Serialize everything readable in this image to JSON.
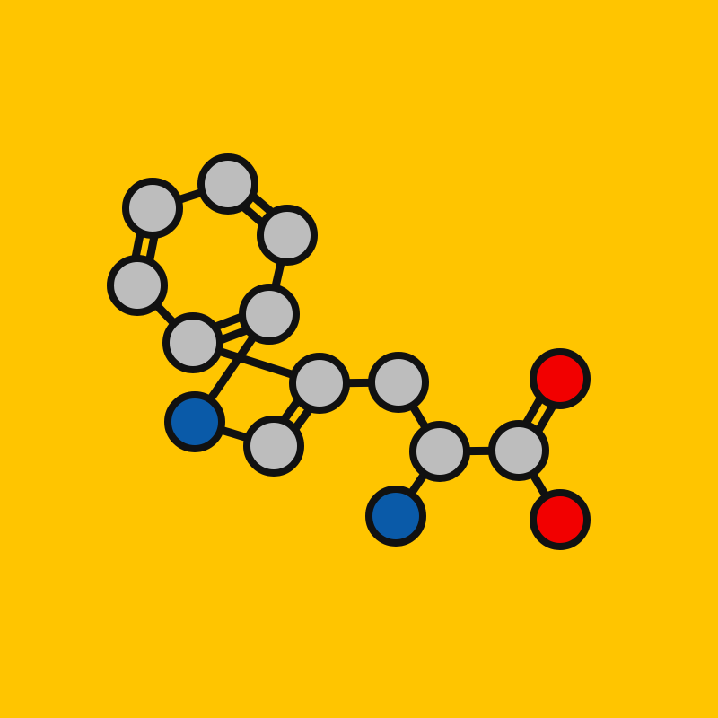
{
  "colors": {
    "background": "#FFC500",
    "carbon": "#BDBDBD",
    "nitrogen": "#0A5AA8",
    "oxygen": "#F20000",
    "outline": "#111111"
  },
  "molecule": {
    "atoms": [
      {
        "id": "c1",
        "element": "C"
      },
      {
        "id": "c2",
        "element": "C"
      },
      {
        "id": "c3",
        "element": "C"
      },
      {
        "id": "c4",
        "element": "C"
      },
      {
        "id": "c5",
        "element": "C"
      },
      {
        "id": "c6",
        "element": "C"
      },
      {
        "id": "n1",
        "element": "N"
      },
      {
        "id": "c7",
        "element": "C"
      },
      {
        "id": "c8",
        "element": "C"
      },
      {
        "id": "c9",
        "element": "C"
      },
      {
        "id": "c10",
        "element": "C"
      },
      {
        "id": "n2",
        "element": "N"
      },
      {
        "id": "c11",
        "element": "C"
      },
      {
        "id": "o1",
        "element": "O"
      },
      {
        "id": "o2",
        "element": "O"
      }
    ],
    "bonds": [
      {
        "from": "c1",
        "to": "c2",
        "order": 1
      },
      {
        "from": "c2",
        "to": "c3",
        "order": 2
      },
      {
        "from": "c3",
        "to": "c4",
        "order": 1
      },
      {
        "from": "c4",
        "to": "c5",
        "order": 2
      },
      {
        "from": "c5",
        "to": "c6",
        "order": 1
      },
      {
        "from": "c6",
        "to": "c1",
        "order": 2
      },
      {
        "from": "c5",
        "to": "n1",
        "order": 1
      },
      {
        "from": "n1",
        "to": "c7",
        "order": 1
      },
      {
        "from": "c7",
        "to": "c8",
        "order": 2
      },
      {
        "from": "c8",
        "to": "c4",
        "order": 1
      },
      {
        "from": "c8",
        "to": "c9",
        "order": 1
      },
      {
        "from": "c9",
        "to": "c10",
        "order": 1
      },
      {
        "from": "c10",
        "to": "n2",
        "order": 1
      },
      {
        "from": "c10",
        "to": "c11",
        "order": 1
      },
      {
        "from": "c11",
        "to": "o1",
        "order": 2
      },
      {
        "from": "c11",
        "to": "o2",
        "order": 1
      }
    ]
  }
}
